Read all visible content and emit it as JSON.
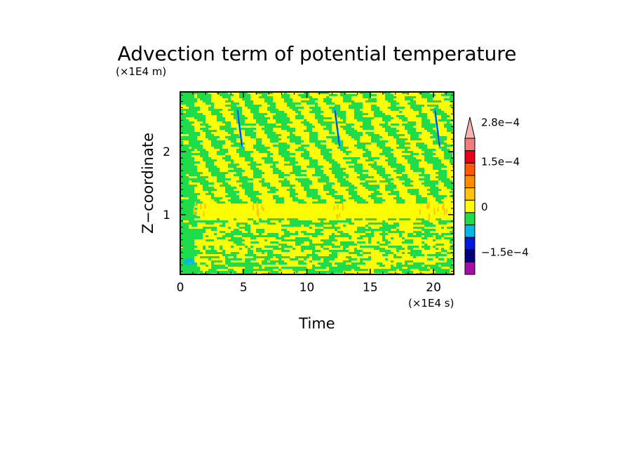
{
  "chart_data": {
    "type": "heatmap",
    "title": "Advection term of potential temperature",
    "xlabel": "Time",
    "ylabel": "Z−coordinate",
    "x_unit": "(×1E4 s)",
    "y_unit": "(×1E4 m)",
    "xlim": [
      0,
      21.6
    ],
    "ylim": [
      0.05,
      2.95
    ],
    "x_ticks": [
      0,
      5,
      10,
      15,
      20
    ],
    "x_tick_labels": [
      "0",
      "5",
      "10",
      "15",
      "20"
    ],
    "y_ticks": [
      1,
      2
    ],
    "y_tick_labels": [
      "1",
      "2"
    ],
    "colorbar": {
      "levels": [
        -0.000225,
        -0.0001875,
        -0.00015,
        -0.0001125,
        -7.5e-05,
        -3.75e-05,
        0,
        3.75e-05,
        7.5e-05,
        0.0001125,
        0.00015,
        0.0001875,
        0.000225,
        0.0002625
      ],
      "colors": [
        "#a30fa3",
        "#00007a",
        "#0018d8",
        "#00b7e8",
        "#1fdc4a",
        "#ffff00",
        "#ffc20e",
        "#ff8c00",
        "#ff5a00",
        "#e8001a",
        "#f07c7c",
        "#f5b2b2"
      ],
      "tick_labels": [
        "2.8e−4",
        "1.5e−4",
        "0",
        "−1.5e−4"
      ],
      "tick_values": [
        0.00028,
        0.00015,
        0,
        -0.00015
      ],
      "extend": "max"
    },
    "field_description": {
      "dominant_colors": [
        "#1fdc4a",
        "#ffff00"
      ],
      "pattern": "diagonal streaks sloping upward toward earlier time in upper levels",
      "band_z": 1.05,
      "band_color": "#ffff00",
      "negative_streaks_x": [
        4.7,
        12.4,
        20.3
      ],
      "positive_patches_x": [
        1.5,
        6.2,
        12.3,
        19.2,
        20.5
      ]
    }
  }
}
